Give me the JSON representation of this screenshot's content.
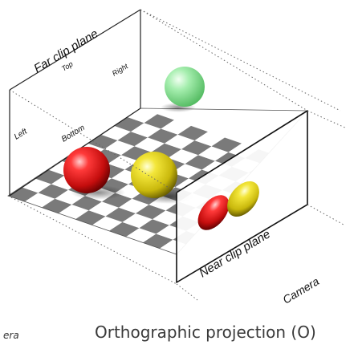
{
  "labels": {
    "far_clip_plane": "Far clip plane",
    "top": "Top",
    "right": "Right",
    "left": "Left",
    "bottom": "Bottom",
    "near_clip_plane": "Near clip plane",
    "camera": "Camera",
    "camera_partial": "era"
  },
  "caption": "Orthographic projection (O)",
  "colors": {
    "red_sphere": "#d81818",
    "yellow_sphere": "#e0d21a",
    "green_sphere": "#8fe39a",
    "checker_dark": "#7a7a7a",
    "checker_light": "#ffffff"
  }
}
